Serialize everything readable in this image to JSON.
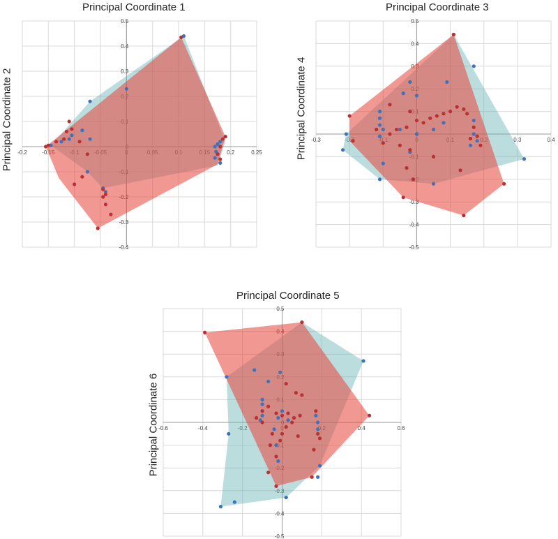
{
  "colors": {
    "red": "#e8443a",
    "blue": "#6ab3b5",
    "red_point": "#b83235",
    "blue_point": "#3d73bd",
    "grid": "#d9d9d9",
    "axis": "#9a9a9a"
  },
  "chart_data": [
    {
      "type": "scatter",
      "title": "Principal Coordinate 1",
      "xlabel": "Principal Coordinate 1",
      "ylabel": "Principal Coordinate 2",
      "xlim": [
        -0.2,
        0.25
      ],
      "ylim": [
        -0.4,
        0.5
      ],
      "xticks": [
        -0.2,
        -0.15,
        -0.1,
        -0.05,
        0,
        0.05,
        0.1,
        0.15,
        0.2,
        0.25
      ],
      "yticks": [
        -0.4,
        -0.3,
        -0.2,
        -0.1,
        0,
        0.1,
        0.2,
        0.3,
        0.4,
        0.5
      ],
      "xtick_labels": [
        "-0.2",
        "-0.15",
        "-0.1",
        "-0.05",
        "0",
        "0.05",
        "0.1",
        "0.15",
        "0.2",
        "0.25"
      ],
      "ytick_labels": [
        "-0.4",
        "-0.3",
        "-0.2",
        "-0.1",
        "0",
        "0.1",
        "0.2",
        "0.3",
        "0.4",
        "0.5"
      ],
      "series": [
        {
          "name": "red",
          "hull": [
            [
              -0.155,
              0
            ],
            [
              0.105,
              0.435
            ],
            [
              0.19,
              0.04
            ],
            [
              0.175,
              -0.07
            ],
            [
              -0.055,
              -0.325
            ],
            [
              -0.13,
              -0.125
            ]
          ],
          "points": [
            [
              -0.155,
              0
            ],
            [
              -0.15,
              0.005
            ],
            [
              -0.135,
              0.02
            ],
            [
              -0.12,
              0.03
            ],
            [
              -0.115,
              0.06
            ],
            [
              -0.11,
              0.1
            ],
            [
              -0.105,
              0.07
            ],
            [
              -0.09,
              0.02
            ],
            [
              -0.075,
              -0.03
            ],
            [
              -0.1,
              -0.15
            ],
            [
              -0.085,
              -0.12
            ],
            [
              -0.045,
              -0.2
            ],
            [
              -0.04,
              -0.23
            ],
            [
              -0.03,
              -0.27
            ],
            [
              -0.055,
              -0.325
            ],
            [
              0.105,
              0.435
            ],
            [
              0.18,
              0.0
            ],
            [
              0.185,
              0.03
            ],
            [
              0.19,
              0.04
            ],
            [
              0.175,
              -0.03
            ],
            [
              0.18,
              -0.05
            ],
            [
              -0.045,
              -0.17
            ],
            [
              -0.04,
              -0.19
            ]
          ]
        },
        {
          "name": "blue",
          "hull": [
            [
              -0.145,
              0.005
            ],
            [
              -0.07,
              0.18
            ],
            [
              0.11,
              0.44
            ],
            [
              0.19,
              0.02
            ],
            [
              0.175,
              -0.075
            ],
            [
              -0.045,
              -0.165
            ],
            [
              -0.075,
              -0.1
            ]
          ],
          "points": [
            [
              -0.07,
              0.18
            ],
            [
              0.0,
              0.23
            ],
            [
              0.11,
              0.44
            ],
            [
              -0.145,
              0.005
            ],
            [
              -0.125,
              0.02
            ],
            [
              -0.11,
              0.03
            ],
            [
              -0.105,
              0.045
            ],
            [
              -0.085,
              0.065
            ],
            [
              -0.07,
              0.03
            ],
            [
              -0.075,
              -0.1
            ],
            [
              -0.045,
              -0.165
            ],
            [
              -0.04,
              -0.18
            ],
            [
              0.17,
              0.0
            ],
            [
              0.175,
              0.01
            ],
            [
              0.18,
              0.02
            ],
            [
              0.175,
              -0.03
            ],
            [
              0.17,
              -0.045
            ],
            [
              0.18,
              -0.065
            ],
            [
              0.172,
              -0.02
            ]
          ]
        }
      ]
    },
    {
      "type": "scatter",
      "title": "Principal Coordinate 3",
      "xlabel": "Principal Coordinate 3",
      "ylabel": "Principal Coordinate 4",
      "xlim": [
        -0.3,
        0.4
      ],
      "ylim": [
        -0.5,
        0.5
      ],
      "xticks": [
        -0.3,
        -0.2,
        -0.1,
        0,
        0.1,
        0.2,
        0.3,
        0.4
      ],
      "yticks": [
        -0.5,
        -0.4,
        -0.3,
        -0.2,
        -0.1,
        0,
        0.1,
        0.2,
        0.3,
        0.4,
        0.5
      ],
      "xtick_labels": [
        "-0.3",
        "-0.2",
        "-0.1",
        "0",
        "0.1",
        "0.2",
        "0.3",
        "0.4"
      ],
      "ytick_labels": [
        "-0.5",
        "-0.4",
        "-0.3",
        "-0.2",
        "-0.1",
        "0",
        "0.1",
        "0.2",
        "0.3",
        "0.4",
        "0.5"
      ],
      "series": [
        {
          "name": "red",
          "hull": [
            [
              -0.2,
              0.08
            ],
            [
              0.11,
              0.44
            ],
            [
              0.26,
              -0.22
            ],
            [
              0.14,
              -0.36
            ],
            [
              -0.04,
              -0.28
            ],
            [
              -0.2,
              -0.03
            ]
          ],
          "points": [
            [
              -0.2,
              0.08
            ],
            [
              -0.19,
              -0.03
            ],
            [
              -0.12,
              0.02
            ],
            [
              -0.1,
              -0.04
            ],
            [
              -0.08,
              0.0
            ],
            [
              -0.06,
              0.02
            ],
            [
              -0.05,
              -0.05
            ],
            [
              -0.03,
              0.03
            ],
            [
              -0.02,
              -0.07
            ],
            [
              0.0,
              0.06
            ],
            [
              0.02,
              0.05
            ],
            [
              0.04,
              0.07
            ],
            [
              0.06,
              0.08
            ],
            [
              0.08,
              0.09
            ],
            [
              0.1,
              0.1
            ],
            [
              0.12,
              0.12
            ],
            [
              0.14,
              0.11
            ],
            [
              0.15,
              0.09
            ],
            [
              0.17,
              0.03
            ],
            [
              0.18,
              -0.01
            ],
            [
              0.19,
              -0.05
            ],
            [
              0.11,
              0.44
            ],
            [
              0.26,
              -0.22
            ],
            [
              0.14,
              -0.36
            ],
            [
              -0.04,
              -0.28
            ],
            [
              -0.03,
              -0.15
            ],
            [
              -0.01,
              -0.2
            ],
            [
              0.13,
              -0.16
            ],
            [
              0.05,
              -0.1
            ],
            [
              0.16,
              -0.02
            ],
            [
              -0.08,
              0.13
            ],
            [
              -0.02,
              0.1
            ]
          ]
        },
        {
          "name": "blue",
          "hull": [
            [
              -0.21,
              0.0
            ],
            [
              0.11,
              0.44
            ],
            [
              0.32,
              -0.11
            ],
            [
              0.05,
              -0.22
            ],
            [
              -0.11,
              -0.2
            ],
            [
              -0.22,
              -0.07
            ]
          ],
          "points": [
            [
              -0.21,
              0.0
            ],
            [
              -0.22,
              -0.07
            ],
            [
              -0.11,
              0.1
            ],
            [
              -0.11,
              0.07
            ],
            [
              -0.11,
              0.04
            ],
            [
              -0.1,
              0.02
            ],
            [
              -0.11,
              -0.01
            ],
            [
              -0.05,
              0.02
            ],
            [
              -0.04,
              0.18
            ],
            [
              -0.02,
              0.23
            ],
            [
              0.0,
              0.17
            ],
            [
              0.09,
              0.23
            ],
            [
              0.11,
              0.44
            ],
            [
              0.17,
              0.3
            ],
            [
              0.32,
              -0.11
            ],
            [
              0.05,
              -0.22
            ],
            [
              -0.11,
              -0.2
            ],
            [
              0.0,
              0.0
            ],
            [
              0.08,
              0.05
            ],
            [
              0.17,
              0.06
            ],
            [
              0.18,
              -0.03
            ],
            [
              0.17,
              0.0
            ],
            [
              -0.1,
              -0.13
            ],
            [
              -0.02,
              -0.08
            ],
            [
              0.05,
              0.02
            ],
            [
              0.16,
              -0.05
            ]
          ]
        }
      ]
    },
    {
      "type": "scatter",
      "title": "Principal Coordinate 5",
      "xlabel": "Principal Coordinate 5",
      "ylabel": "Principal Coordinate  6",
      "xlim": [
        -0.6,
        0.6
      ],
      "ylim": [
        -0.5,
        0.5
      ],
      "xticks": [
        -0.6,
        -0.4,
        -0.2,
        0,
        0.2,
        0.4,
        0.6
      ],
      "yticks": [
        -0.5,
        -0.4,
        -0.3,
        -0.2,
        -0.1,
        0,
        0.1,
        0.2,
        0.3,
        0.4,
        0.5
      ],
      "xtick_labels": [
        "-0.6",
        "-0.4",
        "-0.2",
        "0",
        "0.2",
        "0.4",
        "0.6"
      ],
      "ytick_labels": [
        "-0.5",
        "-0.4",
        "-0.3",
        "-0.2",
        "-0.1",
        "0",
        "0.1",
        "0.2",
        "0.3",
        "0.4",
        "0.5"
      ],
      "series": [
        {
          "name": "red",
          "hull": [
            [
              -0.39,
              0.395
            ],
            [
              0.1,
              0.44
            ],
            [
              0.44,
              0.03
            ],
            [
              0.15,
              -0.24
            ],
            [
              -0.03,
              -0.28
            ]
          ],
          "points": [
            [
              -0.39,
              0.395
            ],
            [
              0.1,
              0.44
            ],
            [
              0.44,
              0.03
            ],
            [
              0.15,
              -0.24
            ],
            [
              -0.03,
              -0.28
            ],
            [
              -0.07,
              -0.22
            ],
            [
              -0.06,
              -0.1
            ],
            [
              -0.05,
              -0.05
            ],
            [
              -0.1,
              0.0
            ],
            [
              -0.13,
              0.02
            ],
            [
              -0.1,
              0.05
            ],
            [
              -0.07,
              0.07
            ],
            [
              -0.03,
              0.04
            ],
            [
              0.0,
              0.03
            ],
            [
              0.03,
              0.04
            ],
            [
              0.06,
              0.02
            ],
            [
              0.09,
              0.03
            ],
            [
              0.05,
              0.0
            ],
            [
              0.02,
              -0.02
            ],
            [
              0.0,
              -0.05
            ],
            [
              0.02,
              0.17
            ],
            [
              0.07,
              0.13
            ],
            [
              0.1,
              0.12
            ],
            [
              0.17,
              0.05
            ],
            [
              0.18,
              -0.05
            ],
            [
              0.19,
              -0.07
            ],
            [
              0.16,
              -0.12
            ],
            [
              -0.03,
              -0.15
            ],
            [
              -0.01,
              -0.08
            ],
            [
              0.08,
              -0.06
            ]
          ]
        },
        {
          "name": "blue",
          "hull": [
            [
              -0.28,
              0.2
            ],
            [
              0.1,
              0.44
            ],
            [
              0.41,
              0.27
            ],
            [
              0.19,
              -0.19
            ],
            [
              0.02,
              -0.33
            ],
            [
              -0.31,
              -0.37
            ],
            [
              -0.27,
              -0.05
            ]
          ],
          "points": [
            [
              -0.28,
              0.2
            ],
            [
              0.1,
              0.44
            ],
            [
              0.41,
              0.27
            ],
            [
              -0.14,
              0.23
            ],
            [
              -0.01,
              0.22
            ],
            [
              -0.07,
              0.18
            ],
            [
              -0.1,
              0.1
            ],
            [
              -0.1,
              0.08
            ],
            [
              -0.1,
              0.05
            ],
            [
              -0.1,
              0.03
            ],
            [
              -0.11,
              0.01
            ],
            [
              0.0,
              0.05
            ],
            [
              -0.02,
              0.02
            ],
            [
              0.03,
              0.01
            ],
            [
              -0.04,
              -0.03
            ],
            [
              0.17,
              0.03
            ],
            [
              0.18,
              0.0
            ],
            [
              0.18,
              -0.03
            ],
            [
              0.19,
              -0.19
            ],
            [
              0.18,
              -0.24
            ],
            [
              0.02,
              -0.33
            ],
            [
              -0.31,
              -0.37
            ],
            [
              -0.24,
              -0.35
            ],
            [
              -0.27,
              -0.05
            ],
            [
              -0.03,
              -0.1
            ],
            [
              -0.02,
              -0.17
            ]
          ]
        }
      ]
    }
  ]
}
